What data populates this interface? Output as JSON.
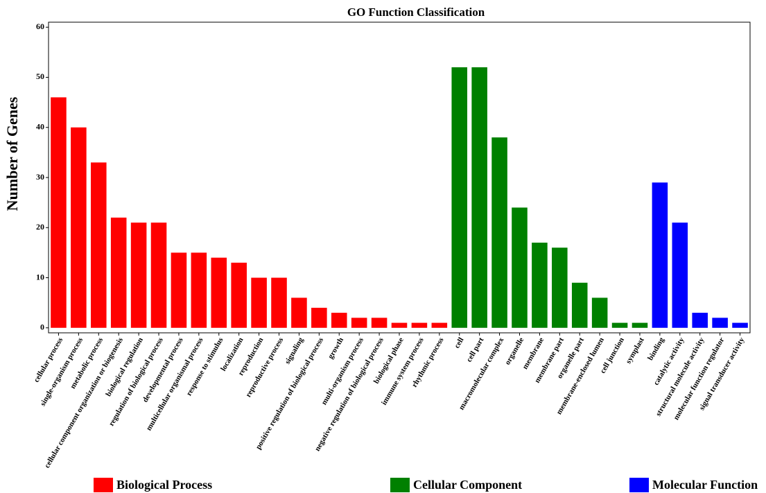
{
  "chart_data": {
    "type": "bar",
    "title": "GO Function Classification",
    "y_label": "Number of Genes",
    "categories": [
      "cellular process",
      "single-organism process",
      "metabolic process",
      "cellular component organization or biogenesis",
      "biological regulation",
      "regulation of biological process",
      "developmental process",
      "multicellular organismal process",
      "response to stimulus",
      "localization",
      "reproduction",
      "reproductive process",
      "signaling",
      "positive regulation of biological process",
      "growth",
      "multi-organism process",
      "negative regulation of biological process",
      "biological phase",
      "immune system process",
      "rhythmic process",
      "cell",
      "cell part",
      "macromolecular complex",
      "organelle",
      "membrane",
      "membrane part",
      "organelle part",
      "membrane-enclosed lumen",
      "cell junction",
      "symplast",
      "binding",
      "catalytic activity",
      "structural molecule activity",
      "molecular function regulator",
      "signal transducer activity"
    ],
    "series": [
      {
        "name": "Biological Process",
        "color": "#ff0000",
        "values": [
          46,
          40,
          33,
          22,
          21,
          21,
          15,
          15,
          14,
          13,
          10,
          10,
          6,
          4,
          3,
          2,
          2,
          1,
          1,
          1,
          null,
          null,
          null,
          null,
          null,
          null,
          null,
          null,
          null,
          null,
          null,
          null,
          null,
          null,
          null
        ]
      },
      {
        "name": "Cellular Component",
        "color": "#008000",
        "values": [
          null,
          null,
          null,
          null,
          null,
          null,
          null,
          null,
          null,
          null,
          null,
          null,
          null,
          null,
          null,
          null,
          null,
          null,
          null,
          null,
          52,
          52,
          38,
          24,
          17,
          16,
          9,
          6,
          1,
          1,
          null,
          null,
          null,
          null,
          null
        ]
      },
      {
        "name": "Molecular Function",
        "color": "#0000ff",
        "values": [
          null,
          null,
          null,
          null,
          null,
          null,
          null,
          null,
          null,
          null,
          null,
          null,
          null,
          null,
          null,
          null,
          null,
          null,
          null,
          null,
          null,
          null,
          null,
          null,
          null,
          null,
          null,
          null,
          null,
          null,
          29,
          21,
          3,
          2,
          1
        ]
      }
    ],
    "ylim": [
      -1,
      61
    ],
    "yticks": [
      0,
      10,
      20,
      30,
      40,
      50,
      60
    ],
    "grid": false
  }
}
